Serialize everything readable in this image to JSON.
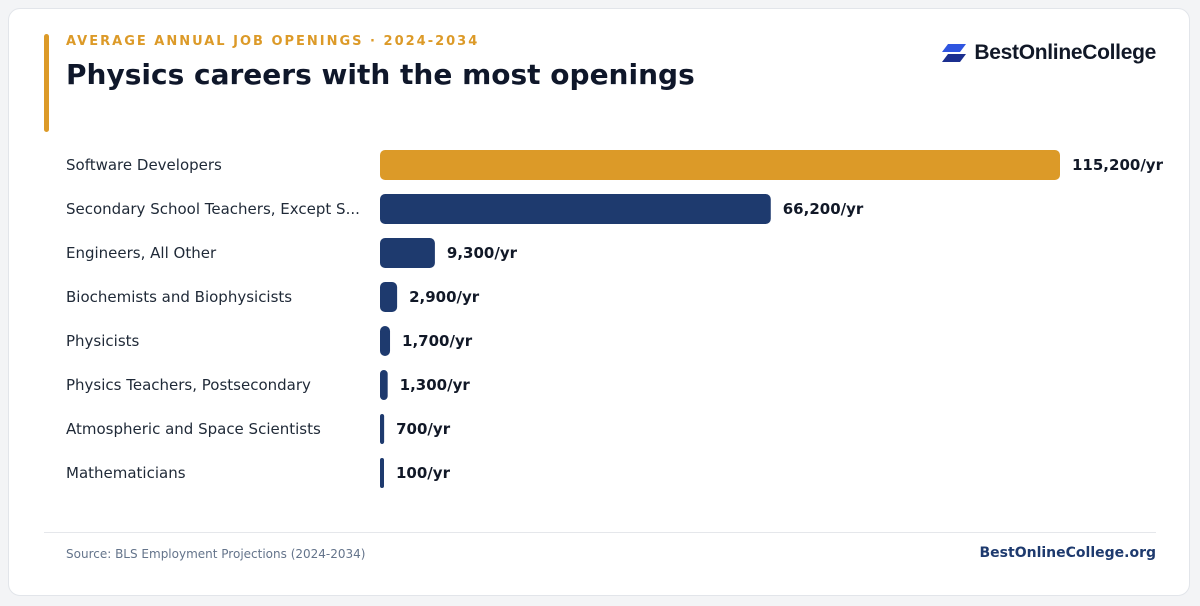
{
  "header": {
    "eyebrow": "AVERAGE ANNUAL JOB OPENINGS · 2024-2034",
    "brand_name": "BestOnlineCollege"
  },
  "footer": {
    "source": "Source: BLS Employment Projections (2024-2034)",
    "site": "BestOnlineCollege.org"
  },
  "colors": {
    "accent": "#dc9a28",
    "bar": "#1e3a6e",
    "brand_blue": "#2f55e0",
    "brand_blue_dark": "#1b2f8f"
  },
  "icons": {
    "brand_logo": "double-parallelogram-icon"
  },
  "chart_data": {
    "type": "bar",
    "orientation": "horizontal",
    "title": "Physics careers with the most openings",
    "categories": [
      "Software Developers",
      "Secondary School Teachers, Except S...",
      "Engineers, All Other",
      "Biochemists and Biophysicists",
      "Physicists",
      "Physics Teachers, Postsecondary",
      "Atmospheric and Space Scientists",
      "Mathematicians"
    ],
    "values": [
      115200,
      66200,
      9300,
      2900,
      1700,
      1300,
      700,
      100
    ],
    "value_labels": [
      "115,200/yr",
      "66,200/yr",
      "9,300/yr",
      "2,900/yr",
      "1,700/yr",
      "1,300/yr",
      "700/yr",
      "100/yr"
    ],
    "highlight_index": 0,
    "grid": false,
    "legend": "none"
  }
}
